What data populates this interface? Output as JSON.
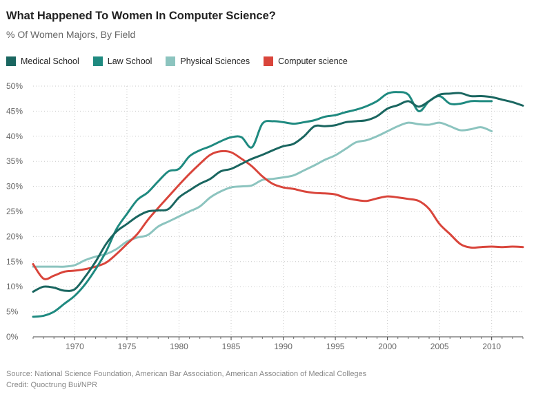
{
  "header": {
    "title": "What Happened To Women In Computer Science?",
    "subtitle": "% Of Women Majors, By Field"
  },
  "footer": {
    "source": "Source: National Science Foundation, American Bar Association, American Association of Medical Colleges",
    "credit": "Credit: Quoctrung Bui/NPR"
  },
  "chart_data": {
    "type": "line",
    "title": "What Happened To Women In Computer Science?",
    "subtitle": "% Of Women Majors, By Field",
    "xlabel": "",
    "ylabel": "",
    "xlim": [
      1966,
      2013
    ],
    "ylim": [
      0,
      50
    ],
    "x_ticks": [
      1970,
      1975,
      1980,
      1985,
      1990,
      1995,
      2000,
      2005,
      2010
    ],
    "y_ticks": [
      0,
      5,
      10,
      15,
      20,
      25,
      30,
      35,
      40,
      45,
      50
    ],
    "y_tick_suffix": "%",
    "grid": true,
    "legend_position": "top-left",
    "series": [
      {
        "name": "Medical School",
        "color": "#1a6660",
        "x": [
          1966,
          1967,
          1968,
          1969,
          1970,
          1971,
          1972,
          1973,
          1974,
          1975,
          1976,
          1977,
          1978,
          1979,
          1980,
          1981,
          1982,
          1983,
          1984,
          1985,
          1986,
          1987,
          1988,
          1989,
          1990,
          1991,
          1992,
          1993,
          1994,
          1995,
          1996,
          1997,
          1998,
          1999,
          2000,
          2001,
          2002,
          2003,
          2004,
          2005,
          2006,
          2007,
          2008,
          2009,
          2010,
          2011,
          2012,
          2013
        ],
        "values": [
          9,
          10,
          9.8,
          9.2,
          9.5,
          12,
          15,
          18.5,
          21,
          22.5,
          24,
          25,
          25.2,
          25.5,
          27.8,
          29.2,
          30.5,
          31.5,
          33,
          33.5,
          34.5,
          35.5,
          36.3,
          37.2,
          38,
          38.5,
          40,
          42,
          42,
          42.2,
          42.8,
          43,
          43.2,
          44,
          45.5,
          46.2,
          47,
          45.9,
          47,
          48.3,
          48.5,
          48.6,
          48,
          48,
          47.8,
          47.3,
          46.8,
          46.1
        ]
      },
      {
        "name": "Law School",
        "color": "#1f8a80",
        "x": [
          1966,
          1967,
          1968,
          1969,
          1970,
          1971,
          1972,
          1973,
          1974,
          1975,
          1976,
          1977,
          1978,
          1979,
          1980,
          1981,
          1982,
          1983,
          1984,
          1985,
          1986,
          1987,
          1988,
          1989,
          1990,
          1991,
          1992,
          1993,
          1994,
          1995,
          1996,
          1997,
          1998,
          1999,
          2000,
          2001,
          2002,
          2003,
          2004,
          2005,
          2006,
          2007,
          2008,
          2009,
          2010
        ],
        "values": [
          4,
          4.2,
          5,
          6.6,
          8.2,
          10.5,
          13.5,
          17,
          21.5,
          24.5,
          27.3,
          28.8,
          31,
          33,
          33.5,
          36,
          37.2,
          38,
          39,
          39.8,
          39.8,
          37.8,
          42.5,
          43,
          42.8,
          42.5,
          42.8,
          43.2,
          43.9,
          44.2,
          44.8,
          45.3,
          46,
          47,
          48.5,
          48.8,
          48.3,
          45,
          47,
          48,
          46.5,
          46.5,
          47,
          47,
          47
        ]
      },
      {
        "name": "Physical Sciences",
        "color": "#8cc4bf",
        "x": [
          1966,
          1967,
          1968,
          1969,
          1970,
          1971,
          1972,
          1973,
          1974,
          1975,
          1976,
          1977,
          1978,
          1979,
          1980,
          1981,
          1982,
          1983,
          1984,
          1985,
          1986,
          1987,
          1988,
          1989,
          1990,
          1991,
          1992,
          1993,
          1994,
          1995,
          1996,
          1997,
          1998,
          1999,
          2000,
          2001,
          2002,
          2003,
          2004,
          2005,
          2006,
          2007,
          2008,
          2009,
          2010
        ],
        "values": [
          14,
          14,
          14,
          14,
          14.3,
          15.3,
          16,
          16.5,
          17.5,
          19,
          19.8,
          20.3,
          22,
          23,
          24,
          25,
          26,
          27.8,
          29,
          29.8,
          30,
          30.2,
          31.3,
          31.5,
          31.8,
          32.2,
          33.2,
          34.2,
          35.3,
          36.2,
          37.5,
          38.8,
          39.2,
          40,
          41,
          42,
          42.7,
          42.4,
          42.3,
          42.7,
          42,
          41.2,
          41.4,
          41.8,
          41
        ]
      },
      {
        "name": "Computer science",
        "color": "#d9453b",
        "x": [
          1966,
          1967,
          1968,
          1969,
          1970,
          1971,
          1972,
          1973,
          1974,
          1975,
          1976,
          1977,
          1978,
          1979,
          1980,
          1981,
          1982,
          1983,
          1984,
          1985,
          1986,
          1987,
          1988,
          1989,
          1990,
          1991,
          1992,
          1993,
          1994,
          1995,
          1996,
          1997,
          1998,
          1999,
          2000,
          2001,
          2002,
          2003,
          2004,
          2005,
          2006,
          2007,
          2008,
          2009,
          2010,
          2011,
          2012,
          2013
        ],
        "values": [
          14.5,
          11.6,
          12.2,
          13,
          13.2,
          13.5,
          14,
          14.8,
          16.5,
          18.5,
          20.5,
          23.3,
          25.7,
          28,
          30.3,
          32.5,
          34.5,
          36.3,
          37,
          36.8,
          35.5,
          34,
          32,
          30.5,
          29.8,
          29.5,
          29,
          28.7,
          28.6,
          28.4,
          27.7,
          27.3,
          27.1,
          27.6,
          28,
          27.8,
          27.5,
          27.1,
          25.5,
          22.5,
          20.5,
          18.5,
          17.8,
          17.9,
          18,
          17.9,
          18,
          17.9
        ]
      }
    ]
  }
}
